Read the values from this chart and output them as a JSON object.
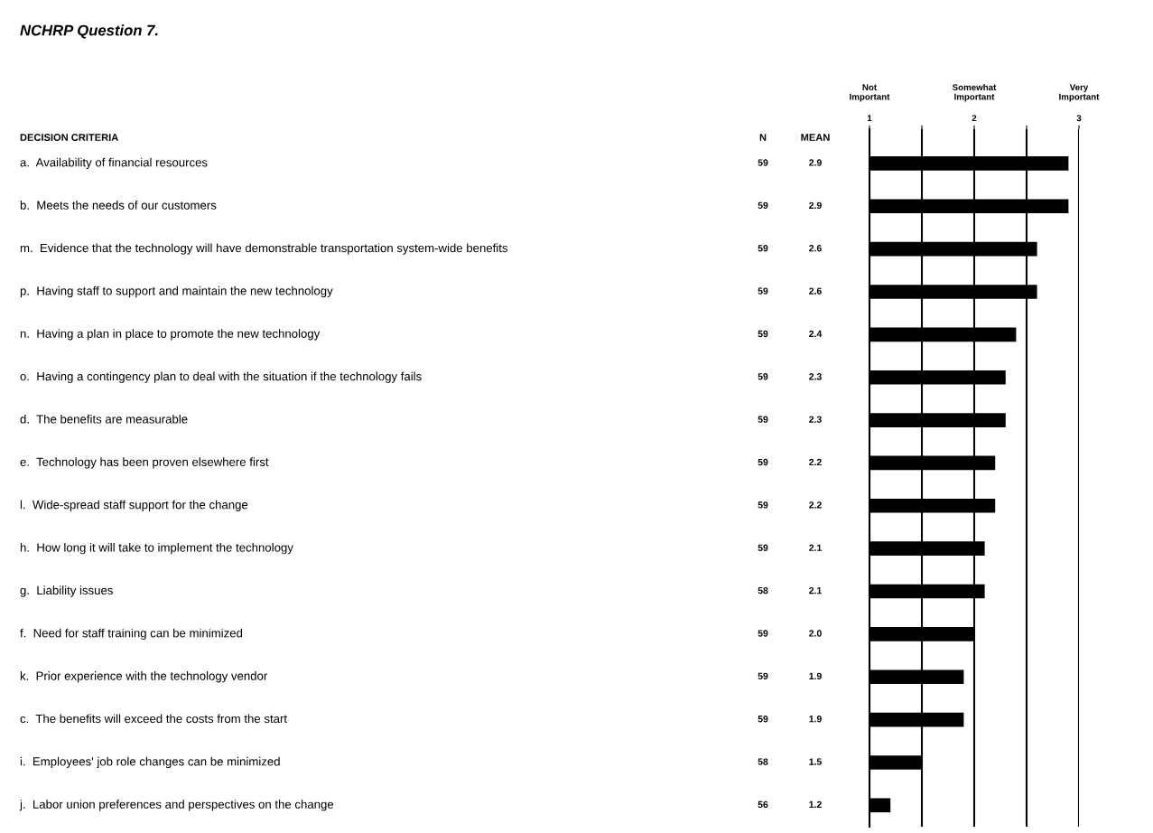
{
  "chart_data": {
    "type": "bar",
    "orientation": "horizontal",
    "title": "NCHRP Question 7.",
    "ylabel": "DECISION CRITERIA",
    "y2label": "N",
    "annotations": [
      "MEAN",
      "Not\nImportant",
      "Somewhat\nImportant",
      "Very\nImportant"
    ],
    "categories": [
      "a.  Availability of financial resources",
      "b.  Meets the needs of our customers",
      "m.  Evidence that the technology will have demonstrable transportation system-wide benefits",
      "p.  Having staff to support and maintain the new technology",
      "n.  Having a plan in place to promote the new technology",
      "o.  Having a contingency plan to deal with the situation if the technology fails",
      "d.  The benefits are measurable",
      "e.  Technology has been proven elsewhere first",
      "l.  Wide-spread staff support for the change",
      "h.  How long it will take to implement the technology",
      "g.  Liability issues",
      "f.  Need for staff training can be minimized",
      "k.  Prior experience with the technology vendor",
      "c.  The benefits will exceed the costs from the start",
      "i.  Employees' job role changes can be minimized",
      "j.  Labor union preferences and perspectives on the change"
    ],
    "y2_categories": [
      "59",
      "59",
      "59",
      "59",
      "59",
      "59",
      "59",
      "59",
      "59",
      "59",
      "58",
      "59",
      "59",
      "59",
      "58",
      "56"
    ],
    "series": [
      {
        "axis": "x2",
        "color": "#000000",
        "values": [
          2.9,
          2.9,
          2.6,
          2.6,
          2.4,
          2.3,
          2.3,
          2.2,
          2.2,
          2.1,
          2.1,
          2.0,
          1.9,
          1.9,
          1.5,
          1.2
        ],
        "value_labels": [
          "2.9",
          "2.9",
          "2.6",
          "2.6",
          "2.4",
          "2.3",
          "2.3",
          "2.2",
          "2.2",
          "2.1",
          "2.1",
          "2.0",
          "1.9",
          "1.9",
          "1.5",
          "1.2"
        ]
      }
    ],
    "x2lim": [
      1,
      3
    ],
    "x2ticks": [
      1,
      {
        "value": 1.5,
        "label": null
      },
      2,
      {
        "value": 2.5,
        "label": null
      },
      3
    ],
    "grid": "x"
  }
}
